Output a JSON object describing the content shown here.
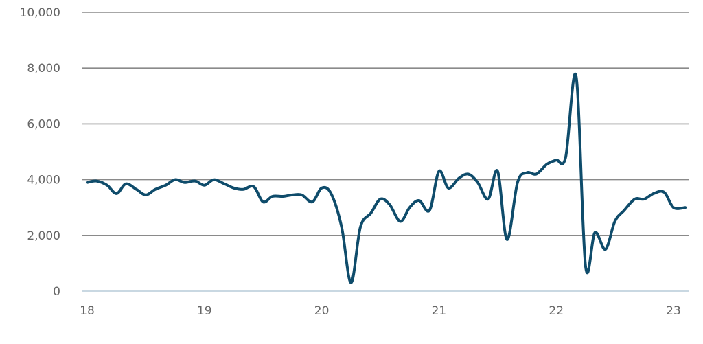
{
  "chart_data": {
    "type": "line",
    "title": "",
    "xlabel": "",
    "ylabel": "",
    "ylim": [
      0,
      10000
    ],
    "xlim": [
      18,
      23.15
    ],
    "y_ticks": [
      0,
      2000,
      4000,
      6000,
      8000,
      10000
    ],
    "y_tick_labels": [
      "0",
      "2,000",
      "4,000",
      "6,000",
      "8,000",
      "10,000"
    ],
    "x_ticks": [
      18,
      19,
      20,
      21,
      22,
      23
    ],
    "x_tick_labels": [
      "18",
      "19",
      "20",
      "21",
      "22",
      "23"
    ],
    "grid": true,
    "legend": "none",
    "colors": {
      "line": "#0f4c6b",
      "grid": "#8a8a8a",
      "baseline": "#b7cbd9",
      "tick_text": "#666666"
    },
    "series": [
      {
        "x": [
          18.0,
          18.08,
          18.17,
          18.25,
          18.33,
          18.42,
          18.5,
          18.58,
          18.67,
          18.75,
          18.83,
          18.92,
          19.0,
          19.08,
          19.17,
          19.25,
          19.33,
          19.42,
          19.5,
          19.58,
          19.67,
          19.75,
          19.83,
          19.92,
          20.0,
          20.08,
          20.17,
          20.25,
          20.33,
          20.42,
          20.5,
          20.58,
          20.67,
          20.75,
          20.83,
          20.92,
          21.0,
          21.08,
          21.17,
          21.25,
          21.33,
          21.42,
          21.5,
          21.58,
          21.67,
          21.75,
          21.83,
          21.92,
          22.0,
          22.08,
          22.17,
          22.25,
          22.33,
          22.42,
          22.5,
          22.58,
          22.67,
          22.75,
          22.83,
          22.92,
          23.0,
          23.1
        ],
        "values": [
          3900,
          3950,
          3800,
          3500,
          3850,
          3650,
          3450,
          3650,
          3800,
          4000,
          3900,
          3950,
          3800,
          4000,
          3850,
          3700,
          3650,
          3750,
          3200,
          3400,
          3400,
          3450,
          3450,
          3200,
          3700,
          3500,
          2300,
          300,
          2300,
          2800,
          3300,
          3100,
          2500,
          3000,
          3250,
          2900,
          4300,
          3700,
          4050,
          4200,
          3900,
          3300,
          4300,
          1850,
          3900,
          4250,
          4200,
          4550,
          4700,
          4800,
          7700,
          900,
          2100,
          1500,
          2500,
          2900,
          3300,
          3300,
          3500,
          3550,
          3000,
          3000
        ]
      }
    ]
  }
}
